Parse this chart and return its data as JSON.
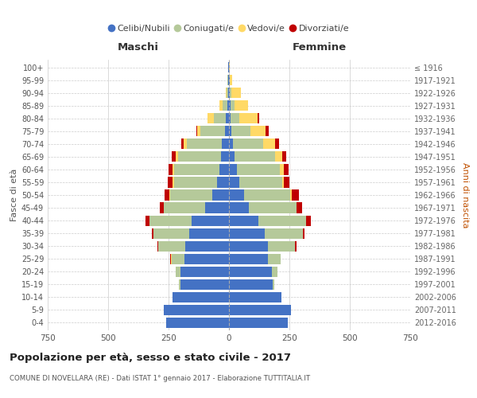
{
  "age_groups": [
    "100+",
    "95-99",
    "90-94",
    "85-89",
    "80-84",
    "75-79",
    "70-74",
    "65-69",
    "60-64",
    "55-59",
    "50-54",
    "45-49",
    "40-44",
    "35-39",
    "30-34",
    "25-29",
    "20-24",
    "15-19",
    "10-14",
    "5-9",
    "0-4"
  ],
  "birth_years": [
    "≤ 1916",
    "1917-1921",
    "1922-1926",
    "1927-1931",
    "1932-1936",
    "1937-1941",
    "1942-1946",
    "1947-1951",
    "1952-1956",
    "1957-1961",
    "1962-1966",
    "1967-1971",
    "1972-1976",
    "1977-1981",
    "1982-1986",
    "1987-1991",
    "1992-1996",
    "1997-2001",
    "2002-2006",
    "2007-2011",
    "2012-2016"
  ],
  "male": {
    "celibi": [
      2,
      3,
      4,
      8,
      12,
      18,
      28,
      32,
      38,
      48,
      70,
      100,
      155,
      165,
      180,
      185,
      200,
      200,
      235,
      270,
      260
    ],
    "coniugati": [
      0,
      2,
      6,
      18,
      50,
      100,
      145,
      180,
      190,
      180,
      175,
      170,
      175,
      148,
      112,
      52,
      22,
      6,
      0,
      0,
      0
    ],
    "vedovi": [
      0,
      1,
      4,
      12,
      28,
      12,
      14,
      10,
      6,
      4,
      2,
      0,
      0,
      0,
      0,
      4,
      0,
      0,
      0,
      0,
      0
    ],
    "divorziati": [
      0,
      0,
      0,
      0,
      0,
      6,
      12,
      14,
      16,
      20,
      18,
      16,
      14,
      6,
      4,
      1,
      0,
      0,
      0,
      0,
      0
    ]
  },
  "female": {
    "nubili": [
      1,
      2,
      4,
      6,
      8,
      10,
      18,
      22,
      32,
      42,
      62,
      82,
      122,
      148,
      162,
      162,
      178,
      182,
      218,
      258,
      242
    ],
    "coniugate": [
      0,
      2,
      6,
      16,
      36,
      78,
      122,
      168,
      178,
      178,
      192,
      198,
      198,
      158,
      112,
      52,
      22,
      6,
      0,
      0,
      0
    ],
    "vedove": [
      1,
      10,
      38,
      58,
      74,
      64,
      52,
      32,
      16,
      8,
      6,
      0,
      0,
      0,
      0,
      0,
      0,
      0,
      0,
      0,
      0
    ],
    "divorziate": [
      0,
      0,
      0,
      0,
      6,
      12,
      14,
      14,
      20,
      22,
      28,
      22,
      18,
      6,
      4,
      1,
      0,
      0,
      0,
      0,
      0
    ]
  },
  "colors": {
    "celibi": "#4472c4",
    "coniugati": "#b5c99a",
    "vedovi": "#ffd966",
    "divorziati": "#c00000"
  },
  "title": "Popolazione per età, sesso e stato civile - 2017",
  "subtitle": "COMUNE DI NOVELLARA (RE) - Dati ISTAT 1° gennaio 2017 - Elaborazione TUTTITALIA.IT",
  "xlabel_left": "Maschi",
  "xlabel_right": "Femmine",
  "ylabel_left": "Fasce di età",
  "ylabel_right": "Anni di nascita",
  "xlim": 750,
  "background_color": "#ffffff",
  "grid_color": "#cccccc"
}
